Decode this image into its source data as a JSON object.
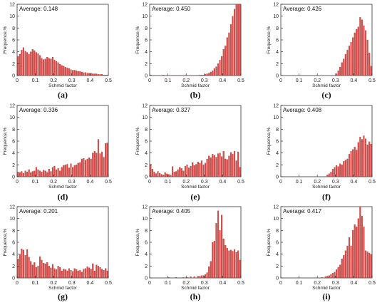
{
  "chart_data": [
    {
      "type": "bar",
      "panel": "(a)",
      "annotation": "Average: 0.148",
      "xlabel": "Schmid factor",
      "ylabel": "Frequence,%",
      "xlim": [
        0,
        0.5
      ],
      "ylim": [
        0,
        12
      ],
      "xticks": [
        "0",
        "0.1",
        "0.2",
        "0.3",
        "0.4",
        "0.5"
      ],
      "yticks": [
        "0",
        "2",
        "4",
        "6",
        "8",
        "10",
        "12"
      ],
      "x": [
        0.005,
        0.015,
        0.025,
        0.035,
        0.045,
        0.055,
        0.065,
        0.075,
        0.085,
        0.095,
        0.105,
        0.115,
        0.125,
        0.135,
        0.145,
        0.155,
        0.165,
        0.175,
        0.185,
        0.195,
        0.205,
        0.215,
        0.225,
        0.235,
        0.245,
        0.255,
        0.265,
        0.275,
        0.285,
        0.295,
        0.305,
        0.315,
        0.325,
        0.335,
        0.345,
        0.355,
        0.365,
        0.375,
        0.385,
        0.395,
        0.405,
        0.415,
        0.425,
        0.435,
        0.445,
        0.455,
        0.465,
        0.475,
        0.485,
        0.495
      ],
      "values": [
        3.2,
        3.6,
        4.3,
        4.7,
        4.1,
        3.9,
        3.6,
        4.0,
        4.4,
        4.2,
        3.9,
        3.7,
        3.4,
        2.9,
        2.7,
        2.8,
        3.1,
        2.9,
        2.8,
        3.1,
        2.6,
        2.4,
        2.2,
        1.9,
        1.7,
        1.6,
        1.4,
        1.3,
        1.2,
        1.0,
        0.9,
        0.9,
        0.8,
        0.7,
        0.7,
        0.6,
        0.5,
        0.5,
        0.4,
        0.4,
        0.4,
        0.3,
        0.3,
        0.3,
        0.2,
        0.2,
        0.2,
        0.1,
        0.1,
        0.1
      ]
    },
    {
      "type": "bar",
      "panel": "(b)",
      "annotation": "Average: 0.450",
      "xlabel": "Schmid factor",
      "ylabel": "Frequence,%",
      "xlim": [
        0,
        0.5
      ],
      "ylim": [
        0,
        12
      ],
      "xticks": [
        "0",
        "0.1",
        "0.2",
        "0.3",
        "0.4",
        "0.5"
      ],
      "yticks": [
        "0",
        "2",
        "4",
        "6",
        "8",
        "10",
        "12"
      ],
      "x": [
        0.005,
        0.015,
        0.025,
        0.035,
        0.045,
        0.055,
        0.065,
        0.075,
        0.085,
        0.095,
        0.105,
        0.115,
        0.125,
        0.135,
        0.145,
        0.155,
        0.165,
        0.175,
        0.185,
        0.195,
        0.205,
        0.215,
        0.225,
        0.235,
        0.245,
        0.255,
        0.265,
        0.275,
        0.285,
        0.295,
        0.305,
        0.315,
        0.325,
        0.335,
        0.345,
        0.355,
        0.365,
        0.375,
        0.385,
        0.395,
        0.405,
        0.415,
        0.425,
        0.435,
        0.445,
        0.455,
        0.465,
        0.475,
        0.485,
        0.495
      ],
      "values": [
        0.1,
        0,
        0.05,
        0,
        0,
        0.05,
        0,
        0.1,
        0,
        0.05,
        0,
        0,
        0.05,
        0,
        0.05,
        0,
        0.05,
        0,
        0,
        0.05,
        0.05,
        0,
        0.05,
        0,
        0.05,
        0.05,
        0.05,
        0.1,
        0.1,
        0.1,
        0.2,
        0.3,
        0.4,
        0.6,
        0.8,
        1.2,
        1.5,
        2.0,
        2.6,
        3.2,
        4.4,
        5.0,
        6.4,
        7.2,
        8.6,
        10.0,
        11.2,
        12.0,
        12.0,
        12.0
      ]
    },
    {
      "type": "bar",
      "panel": "(c)",
      "annotation": "Average: 0.426",
      "xlabel": "Schmid factor",
      "ylabel": "Frequence,%",
      "xlim": [
        0,
        0.5
      ],
      "ylim": [
        0,
        12
      ],
      "xticks": [
        "0",
        "0.1",
        "0.2",
        "0.3",
        "0.4",
        "0.5"
      ],
      "yticks": [
        "0",
        "2",
        "4",
        "6",
        "8",
        "10",
        "12"
      ],
      "x": [
        0.305,
        0.315,
        0.325,
        0.335,
        0.345,
        0.355,
        0.365,
        0.375,
        0.385,
        0.395,
        0.405,
        0.415,
        0.425,
        0.435,
        0.445,
        0.455,
        0.465,
        0.475,
        0.485,
        0.495
      ],
      "values": [
        0.3,
        0.8,
        1.4,
        2.2,
        2.8,
        3.6,
        4.3,
        5.0,
        5.6,
        6.4,
        7.2,
        7.8,
        8.2,
        9.8,
        9.4,
        8.4,
        7.6,
        6.0,
        3.8,
        1.6
      ]
    },
    {
      "type": "bar",
      "panel": "(d)",
      "annotation": "Average: 0.336",
      "xlabel": "Schmid factor",
      "ylabel": "Frequence,%",
      "xlim": [
        0,
        0.5
      ],
      "ylim": [
        0,
        12
      ],
      "xticks": [
        "0",
        "0.1",
        "0.2",
        "0.3",
        "0.4",
        "0.5"
      ],
      "yticks": [
        "0",
        "2",
        "4",
        "6",
        "8",
        "10",
        "12"
      ],
      "x": [
        0.005,
        0.015,
        0.025,
        0.035,
        0.045,
        0.055,
        0.065,
        0.075,
        0.085,
        0.095,
        0.105,
        0.115,
        0.125,
        0.135,
        0.145,
        0.155,
        0.165,
        0.175,
        0.185,
        0.195,
        0.205,
        0.215,
        0.225,
        0.235,
        0.245,
        0.255,
        0.265,
        0.275,
        0.285,
        0.295,
        0.305,
        0.315,
        0.325,
        0.335,
        0.345,
        0.355,
        0.365,
        0.375,
        0.385,
        0.395,
        0.405,
        0.415,
        0.425,
        0.435,
        0.445,
        0.455,
        0.465,
        0.475,
        0.485,
        0.495
      ],
      "values": [
        0.8,
        0.7,
        0.9,
        0.6,
        1.0,
        0.8,
        1.2,
        0.7,
        0.9,
        1.0,
        1.6,
        1.2,
        1.0,
        0.8,
        1.1,
        1.0,
        0.7,
        1.3,
        0.9,
        1.6,
        1.8,
        1.2,
        1.4,
        1.0,
        1.6,
        1.9,
        2.0,
        2.1,
        1.5,
        2.2,
        1.6,
        1.9,
        2.0,
        2.3,
        2.4,
        3.0,
        3.1,
        2.8,
        3.0,
        3.2,
        3.0,
        4.0,
        4.3,
        4.0,
        6.3,
        3.9,
        4.2,
        3.3,
        5.6,
        5.7
      ]
    },
    {
      "type": "bar",
      "panel": "(e)",
      "annotation": "Average: 0.327",
      "xlabel": "Schmid factor",
      "ylabel": "Frequence,%",
      "xlim": [
        0,
        0.5
      ],
      "ylim": [
        0,
        12
      ],
      "xticks": [
        "0",
        "0.1",
        "0.2",
        "0.3",
        "0.4",
        "0.5"
      ],
      "yticks": [
        "0",
        "2",
        "4",
        "6",
        "8",
        "10",
        "12"
      ],
      "x": [
        0.005,
        0.015,
        0.025,
        0.035,
        0.045,
        0.055,
        0.065,
        0.075,
        0.085,
        0.095,
        0.105,
        0.115,
        0.125,
        0.135,
        0.145,
        0.155,
        0.165,
        0.175,
        0.185,
        0.195,
        0.205,
        0.215,
        0.225,
        0.235,
        0.245,
        0.255,
        0.265,
        0.275,
        0.285,
        0.295,
        0.305,
        0.315,
        0.325,
        0.335,
        0.345,
        0.355,
        0.365,
        0.375,
        0.385,
        0.395,
        0.405,
        0.415,
        0.425,
        0.435,
        0.445,
        0.455,
        0.465,
        0.475,
        0.485,
        0.495
      ],
      "values": [
        2.1,
        1.3,
        0.8,
        0.5,
        0.9,
        0.6,
        0.4,
        0.3,
        0.7,
        0.5,
        0.4,
        0.3,
        1.7,
        0.8,
        0.9,
        1.2,
        1.6,
        1.4,
        1.0,
        1.8,
        2.0,
        1.5,
        1.8,
        2.4,
        1.9,
        2.1,
        2.5,
        2.3,
        2.7,
        2.0,
        2.3,
        3.0,
        3.5,
        3.2,
        3.8,
        3.6,
        3.3,
        3.9,
        4.0,
        3.4,
        4.3,
        3.0,
        2.9,
        3.5,
        4.1,
        3.8,
        4.3,
        2.7,
        4.2,
        1.6
      ]
    },
    {
      "type": "bar",
      "panel": "(f)",
      "annotation": "Average: 0.408",
      "xlabel": "Schmid factor",
      "ylabel": "Frequence,%",
      "xlim": [
        0,
        0.5
      ],
      "ylim": [
        0,
        12
      ],
      "xticks": [
        "0",
        "0.1",
        "0.2",
        "0.3",
        "0.4",
        "0.5"
      ],
      "yticks": [
        "0",
        "2",
        "4",
        "6",
        "8",
        "10",
        "12"
      ],
      "x": [
        0.255,
        0.265,
        0.275,
        0.285,
        0.295,
        0.305,
        0.315,
        0.325,
        0.335,
        0.345,
        0.355,
        0.365,
        0.375,
        0.385,
        0.395,
        0.405,
        0.415,
        0.425,
        0.435,
        0.445,
        0.455,
        0.465,
        0.475,
        0.485,
        0.495
      ],
      "values": [
        0.3,
        0.5,
        0.8,
        1.3,
        1.6,
        1.9,
        1.7,
        2.2,
        2.0,
        2.6,
        2.8,
        3.0,
        3.8,
        4.3,
        4.6,
        5.0,
        4.5,
        5.8,
        6.7,
        6.3,
        6.9,
        6.4,
        5.4,
        5.9,
        5.5
      ]
    },
    {
      "type": "bar",
      "panel": "(g)",
      "annotation": "Average: 0.201",
      "xlabel": "Schmid factor",
      "ylabel": "Frequence,%",
      "xlim": [
        0,
        0.5
      ],
      "ylim": [
        0,
        12
      ],
      "xticks": [
        "0",
        "0.1",
        "0.2",
        "0.3",
        "0.4",
        "0.5"
      ],
      "yticks": [
        "0",
        "2",
        "4",
        "6",
        "8",
        "10",
        "12"
      ],
      "x": [
        0.005,
        0.015,
        0.025,
        0.035,
        0.045,
        0.055,
        0.065,
        0.075,
        0.085,
        0.095,
        0.105,
        0.115,
        0.125,
        0.135,
        0.145,
        0.155,
        0.165,
        0.175,
        0.185,
        0.195,
        0.205,
        0.215,
        0.225,
        0.235,
        0.245,
        0.255,
        0.265,
        0.275,
        0.285,
        0.295,
        0.305,
        0.315,
        0.325,
        0.335,
        0.345,
        0.355,
        0.365,
        0.375,
        0.385,
        0.395,
        0.405,
        0.415,
        0.425,
        0.435,
        0.445,
        0.455,
        0.465,
        0.475,
        0.485,
        0.495
      ],
      "values": [
        3.2,
        4.0,
        4.9,
        4.7,
        3.8,
        4.8,
        3.5,
        2.8,
        2.2,
        2.6,
        1.8,
        2.0,
        3.6,
        3.0,
        2.5,
        2.4,
        2.6,
        2.0,
        1.7,
        2.3,
        1.6,
        1.4,
        2.0,
        1.8,
        1.2,
        1.5,
        1.4,
        1.2,
        1.6,
        1.3,
        1.1,
        1.6,
        1.4,
        1.2,
        1.3,
        1.0,
        1.5,
        1.6,
        1.9,
        1.7,
        1.5,
        2.4,
        1.2,
        2.2,
        2.0,
        1.8,
        1.5,
        1.3,
        1.6,
        1.2
      ]
    },
    {
      "type": "bar",
      "panel": "(h)",
      "annotation": "Average: 0.405",
      "xlabel": "Schmid factor",
      "ylabel": "Frequence,%",
      "xlim": [
        0,
        0.5
      ],
      "ylim": [
        0,
        12
      ],
      "xticks": [
        "0",
        "0.1",
        "0.2",
        "0.3",
        "0.4",
        "0.5"
      ],
      "yticks": [
        "0",
        "2",
        "4",
        "6",
        "8",
        "10",
        "12"
      ],
      "x": [
        0.105,
        0.145,
        0.185,
        0.205,
        0.225,
        0.245,
        0.265,
        0.275,
        0.285,
        0.295,
        0.305,
        0.315,
        0.325,
        0.335,
        0.345,
        0.355,
        0.365,
        0.375,
        0.385,
        0.395,
        0.405,
        0.415,
        0.425,
        0.435,
        0.445,
        0.455,
        0.465,
        0.475,
        0.485,
        0.495
      ],
      "values": [
        0.1,
        0.1,
        0.1,
        0.1,
        0.2,
        0.2,
        0.3,
        0.3,
        0.4,
        0.4,
        0.6,
        0.9,
        1.9,
        2.8,
        6.0,
        6.2,
        9.2,
        11.3,
        8.0,
        10.6,
        6.6,
        5.5,
        5.0,
        4.6,
        4.7,
        4.5,
        4.8,
        4.3,
        4.6,
        3.0
      ]
    },
    {
      "type": "bar",
      "panel": "(i)",
      "annotation": "Average: 0.417",
      "xlabel": "Schmid factor",
      "ylabel": "Frequence,%",
      "xlim": [
        0,
        0.5
      ],
      "ylim": [
        0,
        12
      ],
      "xticks": [
        "0",
        "0.1",
        "0.2",
        "0.3",
        "0.4",
        "0.5"
      ],
      "yticks": [
        "0",
        "2",
        "4",
        "6",
        "8",
        "10",
        "12"
      ],
      "x": [
        0.225,
        0.245,
        0.255,
        0.265,
        0.275,
        0.285,
        0.295,
        0.305,
        0.315,
        0.325,
        0.335,
        0.345,
        0.355,
        0.365,
        0.375,
        0.385,
        0.395,
        0.405,
        0.415,
        0.425,
        0.435,
        0.445,
        0.455,
        0.465,
        0.475,
        0.485,
        0.495
      ],
      "values": [
        0.1,
        0.2,
        0.3,
        0.4,
        0.6,
        0.8,
        1.0,
        1.4,
        1.8,
        2.2,
        3.2,
        3.8,
        4.6,
        5.4,
        6.8,
        5.4,
        8.0,
        9.0,
        8.6,
        10.0,
        12.0,
        10.4,
        8.6,
        4.6,
        4.4,
        4.2,
        4.0
      ]
    }
  ]
}
